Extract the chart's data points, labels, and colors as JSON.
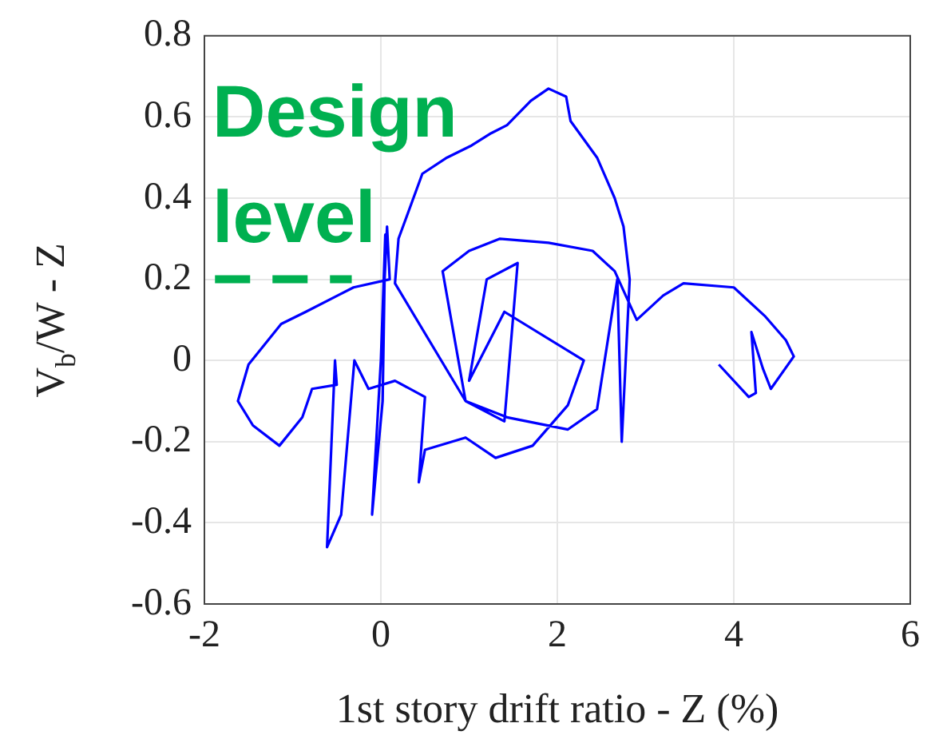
{
  "chart_data": {
    "type": "line",
    "xlabel": "1st story drift ratio - Z (%)",
    "ylabel": "V$_{b}$/W - Z",
    "xlim": [
      -2,
      6
    ],
    "ylim": [
      -0.6,
      0.8
    ],
    "xticks": [
      -2,
      0,
      2,
      4,
      6
    ],
    "yticks": [
      -0.6,
      -0.4,
      -0.2,
      0,
      0.2,
      0.4,
      0.6,
      0.8
    ],
    "grid": true,
    "marker": "none",
    "annotations": [
      "Design level"
    ],
    "series": [
      {
        "color": "#0000ff",
        "line_style": "solid",
        "x": [
          0,
          0.05,
          0.02,
          -0.1,
          0,
          0.07,
          0.1,
          -0.31,
          -0.49,
          -0.85,
          -1.13,
          -1.5,
          -1.62,
          -1.45,
          -1.15,
          -0.89,
          -0.78,
          -0.5,
          -0.52,
          -0.61,
          -0.45,
          -0.3,
          -0.14,
          0.16,
          0.5,
          0.43,
          0.5,
          0.96,
          1.3,
          1.72,
          2.12,
          2.3,
          1.4,
          1,
          1.2,
          1.55,
          1.4,
          0.96,
          0.16,
          0.2,
          0.47,
          0.75,
          1.03,
          1.25,
          1.43,
          1.7,
          1.9,
          2.1,
          2.15,
          2.45,
          2.65,
          2.75,
          2.82,
          2.73,
          2.68,
          2.45,
          2.12,
          1.43,
          0.96,
          0.7,
          1,
          1.35,
          1.9,
          2.4,
          2.65,
          2.9,
          3.2,
          3.43,
          4,
          4.35,
          4.59,
          4.68,
          4.42,
          4.33,
          4.2,
          4.25,
          4.17,
          3.83
        ],
        "values": [
          0,
          0.31,
          -0.1,
          -0.38,
          0,
          0.33,
          0.2,
          0.18,
          0.16,
          0.12,
          0.09,
          -0.01,
          -0.1,
          -0.16,
          -0.21,
          -0.14,
          -0.07,
          -0.06,
          0,
          -0.46,
          -0.38,
          0,
          -0.07,
          -0.05,
          -0.09,
          -0.3,
          -0.22,
          -0.19,
          -0.24,
          -0.21,
          -0.11,
          0,
          0.12,
          -0.05,
          0.2,
          0.24,
          -0.15,
          -0.1,
          0.19,
          0.3,
          0.46,
          0.5,
          0.53,
          0.56,
          0.58,
          0.64,
          0.67,
          0.65,
          0.59,
          0.5,
          0.4,
          0.33,
          0.2,
          -0.2,
          0.2,
          -0.12,
          -0.17,
          -0.14,
          -0.1,
          0.22,
          0.27,
          0.3,
          0.29,
          0.27,
          0.22,
          0.1,
          0.16,
          0.19,
          0.18,
          0.11,
          0.05,
          0.01,
          -0.07,
          -0.02,
          0.07,
          -0.08,
          -0.09,
          -0.01
        ]
      },
      {
        "color": "#00b050",
        "line_style": "dashed",
        "x": [
          -1.88,
          -0.33
        ],
        "values": [
          0.2,
          0.2
        ]
      }
    ]
  }
}
